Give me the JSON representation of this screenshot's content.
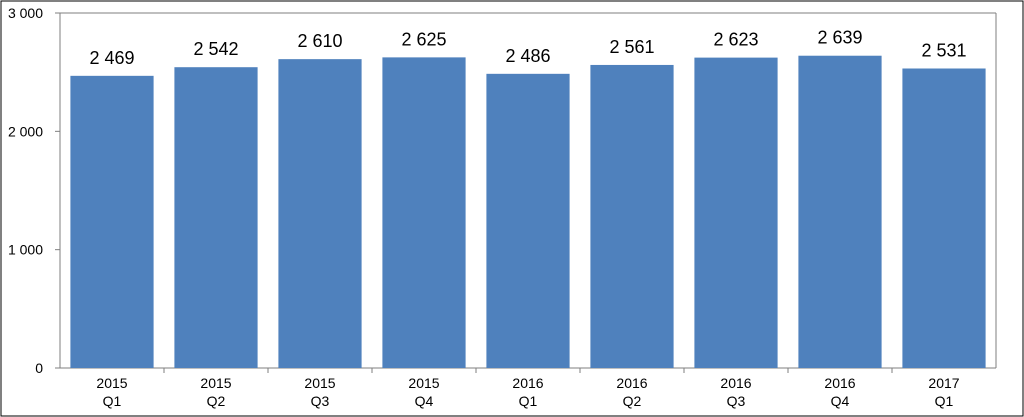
{
  "chart_data": {
    "type": "bar",
    "categories": [
      [
        "2015",
        "Q1"
      ],
      [
        "2015",
        "Q2"
      ],
      [
        "2015",
        "Q3"
      ],
      [
        "2015",
        "Q4"
      ],
      [
        "2016",
        "Q1"
      ],
      [
        "2016",
        "Q2"
      ],
      [
        "2016",
        "Q3"
      ],
      [
        "2016",
        "Q4"
      ],
      [
        "2017",
        "Q1"
      ]
    ],
    "values": [
      2469,
      2542,
      2610,
      2625,
      2486,
      2561,
      2623,
      2639,
      2531
    ],
    "data_labels": [
      "2 469",
      "2 542",
      "2 610",
      "2 625",
      "2 486",
      "2 561",
      "2 623",
      "2 639",
      "2 531"
    ],
    "yticks": [
      0,
      1000,
      2000,
      3000
    ],
    "ytick_labels": [
      "0",
      "1 000",
      "2 000",
      "3 000"
    ],
    "ylim": [
      0,
      3000
    ],
    "title": "",
    "xlabel": "",
    "ylabel": "",
    "grid": false,
    "legend": "none",
    "colors": {
      "bar": "#4f81bd",
      "axis": "#7f7f7f",
      "frame": "#7f7f7f",
      "text": "#000000"
    }
  }
}
